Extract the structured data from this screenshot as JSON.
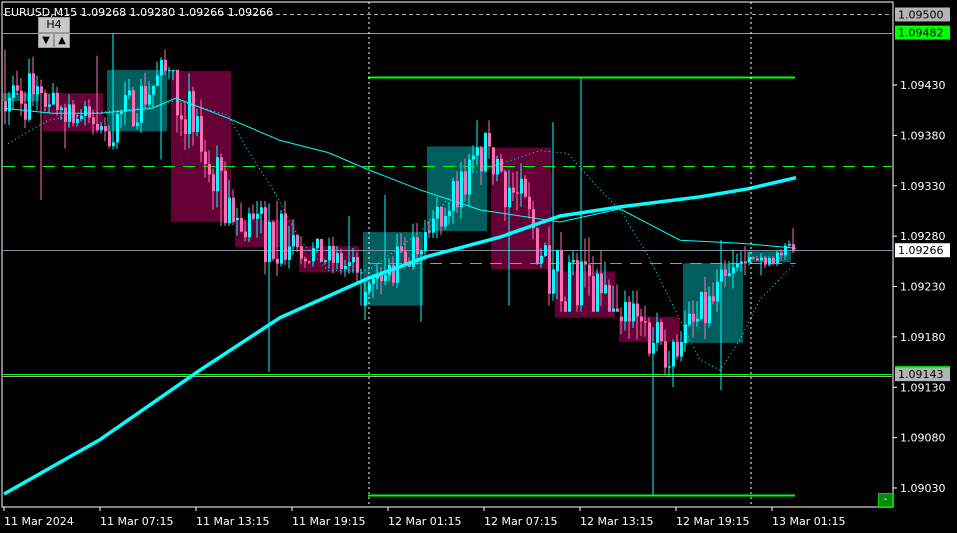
{
  "header": {
    "title": "EURUSD,M15  1.09268 1.09280 1.09266 1.09266"
  },
  "controls": {
    "timeframe_button": "H4",
    "down_icon": "triangle-down-icon",
    "up_icon": "triangle-up-icon",
    "minus_button": "-"
  },
  "colors": {
    "bull": "#00FFFF",
    "bear": "#FF6EB4",
    "bull_box": "#005E5E",
    "bear_box": "#650036",
    "level": "#00FF00",
    "ma": "#00FFFF",
    "bid_line": "#8090A0"
  },
  "chart_data": {
    "type": "candlestick",
    "symbol": "EURUSD",
    "timeframe": "M15",
    "ohlc_header": {
      "open": 1.09268,
      "high": 1.0928,
      "low": 1.09266,
      "close": 1.09266
    },
    "ylim": [
      1.09005,
      1.09515
    ],
    "y_ticks": [
      "1.09430",
      "1.09380",
      "1.09330",
      "1.09280",
      "1.09230",
      "1.09180",
      "1.09130",
      "1.09080",
      "1.09030"
    ],
    "x_ticks": [
      "11 Mar 2024",
      "11 Mar 07:15",
      "11 Mar 13:15",
      "11 Mar 19:15",
      "12 Mar 01:15",
      "12 Mar 07:15",
      "12 Mar 13:15",
      "12 Mar 19:15",
      "13 Mar 01:15"
    ],
    "price_tags": [
      {
        "label": "1.09500",
        "price": 1.095,
        "style": "gray"
      },
      {
        "label": "1.09482",
        "price": 1.09482,
        "style": "green"
      },
      {
        "label": "1.09266",
        "price": 1.09266,
        "style": "white"
      },
      {
        "label": "1.09143",
        "price": 1.09143,
        "style": "gray"
      }
    ],
    "h4_boxes": [
      {
        "open": 1.09414,
        "close": 1.09422,
        "high": 1.09465,
        "low": 1.09316,
        "bars": 10
      },
      {
        "open": 1.09422,
        "close": 1.09384,
        "high": 1.09459,
        "low": 1.09367,
        "bars": 16
      },
      {
        "open": 1.09384,
        "close": 1.09445,
        "high": 1.09481,
        "low": 1.09356,
        "bars": 16
      },
      {
        "open": 1.09444,
        "close": 1.09294,
        "high": 1.09445,
        "low": 1.0929,
        "bars": 16
      },
      {
        "open": 1.09296,
        "close": 1.09269,
        "high": 1.09315,
        "low": 1.09145,
        "bars": 16
      },
      {
        "open": 1.0927,
        "close": 1.09244,
        "high": 1.093,
        "low": 1.09211,
        "bars": 16
      },
      {
        "open": 1.09211,
        "close": 1.09284,
        "high": 1.09321,
        "low": 1.09195,
        "bars": 16
      },
      {
        "open": 1.09285,
        "close": 1.09369,
        "high": 1.09395,
        "low": 1.09278,
        "bars": 16
      },
      {
        "open": 1.09368,
        "close": 1.09247,
        "high": 1.09393,
        "low": 1.09211,
        "bars": 16
      },
      {
        "open": 1.09245,
        "close": 1.09199,
        "high": 1.09437,
        "low": 1.09205,
        "bars": 16
      },
      {
        "open": 1.092,
        "close": 1.09175,
        "high": 1.09226,
        "low": 1.09023,
        "bars": 16
      },
      {
        "open": 1.09174,
        "close": 1.09253,
        "high": 1.09276,
        "low": 1.09127,
        "bars": 16
      },
      {
        "open": 1.09254,
        "close": 1.09265,
        "high": 1.09288,
        "low": 1.09241,
        "bars": 12
      }
    ],
    "ma_slow": [
      [
        0,
        1.09024
      ],
      [
        24,
        1.09078
      ],
      [
        49,
        1.09147
      ],
      [
        69,
        1.09199
      ],
      [
        91,
        1.09238
      ],
      [
        106,
        1.0926
      ],
      [
        124,
        1.09279
      ],
      [
        139,
        1.093
      ],
      [
        154,
        1.09309
      ],
      [
        174,
        1.09319
      ],
      [
        186,
        1.09327
      ],
      [
        198,
        1.09338
      ]
    ],
    "ma_mid": [
      [
        0,
        1.09407
      ],
      [
        12,
        1.09402
      ],
      [
        24,
        1.09402
      ],
      [
        37,
        1.09407
      ],
      [
        43,
        1.09417
      ],
      [
        56,
        1.09397
      ],
      [
        69,
        1.09375
      ],
      [
        81,
        1.09363
      ],
      [
        91,
        1.09346
      ],
      [
        104,
        1.09326
      ],
      [
        119,
        1.09306
      ],
      [
        139,
        1.09294
      ],
      [
        154,
        1.09307
      ],
      [
        169,
        1.09276
      ],
      [
        184,
        1.09273
      ],
      [
        198,
        1.09268
      ]
    ],
    "ma_fast_dotted": [
      [
        1,
        1.09372
      ],
      [
        11,
        1.09395
      ],
      [
        24,
        1.09403
      ],
      [
        39,
        1.09409
      ],
      [
        43,
        1.09415
      ],
      [
        56,
        1.094
      ],
      [
        61,
        1.09365
      ],
      [
        68,
        1.09321
      ],
      [
        74,
        1.09276
      ],
      [
        81,
        1.09246
      ],
      [
        91,
        1.09246
      ],
      [
        104,
        1.09284
      ],
      [
        116,
        1.09341
      ],
      [
        134,
        1.09365
      ],
      [
        141,
        1.09362
      ],
      [
        149,
        1.09326
      ],
      [
        154,
        1.09306
      ],
      [
        161,
        1.09261
      ],
      [
        169,
        1.09197
      ],
      [
        174,
        1.09157
      ],
      [
        179,
        1.09147
      ],
      [
        184,
        1.09177
      ],
      [
        189,
        1.09217
      ],
      [
        198,
        1.09254
      ]
    ],
    "levels": [
      {
        "price": 1.095,
        "style": "dashed-gray",
        "span": "full"
      },
      {
        "price": 1.09482,
        "style": "solid-green",
        "span": "full"
      },
      {
        "price": 1.09438,
        "style": "solid-green",
        "span": "session"
      },
      {
        "price": 1.0935,
        "style": "dashed-green",
        "span": "full"
      },
      {
        "price": 1.09266,
        "style": "bid",
        "span": "full"
      },
      {
        "price": 1.09253,
        "style": "dashed-green",
        "span": "session"
      },
      {
        "price": 1.09143,
        "style": "solid-green",
        "span": "full"
      },
      {
        "price": 1.09023,
        "style": "solid-green",
        "span": "session"
      }
    ]
  }
}
